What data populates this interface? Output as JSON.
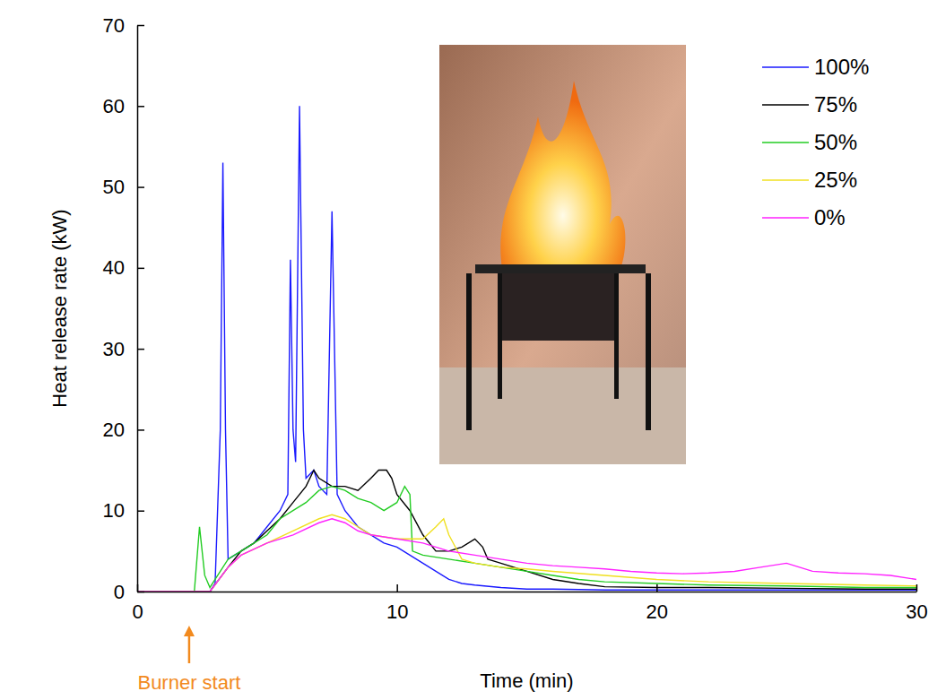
{
  "chart_data": {
    "type": "line",
    "x_label": "Time (min)",
    "y_label": "Heat release rate (kW)",
    "xlim": [
      0,
      30
    ],
    "ylim": [
      0,
      70
    ],
    "xticks": [
      0,
      10,
      20,
      30
    ],
    "yticks": [
      0,
      10,
      20,
      30,
      40,
      50,
      60,
      70
    ],
    "legend": "upper right",
    "annotations": [
      {
        "text": "Burner start",
        "x": 2,
        "color": "#f28a1e"
      }
    ],
    "series": [
      {
        "name": "100%",
        "color": "#1a1aff",
        "x": [
          0,
          2.8,
          3.0,
          3.2,
          3.3,
          3.4,
          3.5,
          4,
          4.5,
          5,
          5.5,
          5.8,
          5.9,
          6.0,
          6.1,
          6.25,
          6.4,
          6.5,
          6.8,
          7.0,
          7.3,
          7.5,
          7.7,
          8,
          8.5,
          9,
          9.5,
          10,
          10.5,
          11,
          11.5,
          12,
          12.5,
          13,
          14,
          15,
          16,
          18,
          20,
          25,
          30
        ],
        "values": [
          0,
          0,
          1,
          20,
          53,
          20,
          4,
          5,
          6,
          8,
          10,
          12,
          41,
          20,
          16,
          60,
          20,
          14,
          15,
          13,
          12,
          47,
          12,
          10,
          8,
          7,
          6,
          5.5,
          4.5,
          3.5,
          2.5,
          1.5,
          1,
          0.8,
          0.5,
          0.3,
          0.3,
          0.2,
          0.2,
          0.2,
          0.2
        ]
      },
      {
        "name": "75%",
        "color": "#000000",
        "x": [
          0,
          2.8,
          3.5,
          4,
          4.5,
          5,
          5.5,
          6,
          6.5,
          6.8,
          7,
          7.5,
          8,
          8.5,
          9,
          9.3,
          9.6,
          9.8,
          10,
          10.5,
          11,
          11.5,
          12,
          12.5,
          13,
          13.3,
          13.5,
          14,
          15,
          16,
          17,
          18,
          20,
          22,
          25,
          28,
          30
        ],
        "values": [
          0,
          0,
          3,
          5,
          6,
          7.5,
          9,
          11,
          13,
          15,
          14,
          13,
          13,
          12.5,
          14,
          15,
          15,
          14,
          12,
          10,
          7,
          5,
          5,
          5.5,
          6.5,
          5.5,
          4,
          3.5,
          2.5,
          1.5,
          1,
          0.6,
          0.5,
          0.5,
          0.4,
          0.3,
          0.3
        ]
      },
      {
        "name": "50%",
        "color": "#22cc22",
        "x": [
          0,
          2.2,
          2.4,
          2.6,
          2.8,
          3.0,
          3.5,
          4,
          5,
          5.5,
          6,
          6.5,
          7,
          7.5,
          8,
          8.5,
          9,
          9.5,
          10,
          10.3,
          10.5,
          10.6,
          11,
          12,
          13,
          14,
          15,
          16,
          17,
          18,
          20,
          22,
          25,
          28,
          30
        ],
        "values": [
          0,
          0,
          8,
          2,
          0.5,
          1.5,
          4,
          5,
          7,
          9,
          10,
          11,
          12.5,
          13,
          12.5,
          11.5,
          11,
          10,
          11,
          13,
          12,
          5,
          4.5,
          4,
          3.5,
          3,
          2.5,
          2,
          1.5,
          1.2,
          1,
          0.8,
          0.7,
          0.5,
          0.5
        ]
      },
      {
        "name": "25%",
        "color": "#f0e020",
        "x": [
          0,
          2.8,
          3.5,
          4,
          5,
          6,
          7,
          7.5,
          8,
          8.5,
          9,
          10,
          11,
          11.5,
          11.8,
          12,
          12.5,
          13,
          14,
          15,
          16,
          18,
          20,
          22,
          25,
          28,
          30
        ],
        "values": [
          0,
          0,
          3,
          4.5,
          6,
          7.5,
          9,
          9.5,
          9,
          8,
          7,
          6.5,
          6.5,
          8,
          9,
          7,
          4,
          3.5,
          3,
          2.8,
          2.5,
          2,
          1.5,
          1.2,
          1,
          0.8,
          0.7
        ]
      },
      {
        "name": "0%",
        "color": "#ff22ff",
        "x": [
          0,
          2.8,
          3.5,
          4,
          5,
          6,
          7,
          7.5,
          8,
          8.5,
          9,
          10,
          11,
          12,
          13,
          14,
          15,
          16,
          17,
          18,
          19,
          20,
          21,
          22,
          23,
          24,
          25,
          25.5,
          26,
          27,
          28,
          29,
          30
        ],
        "values": [
          0,
          0,
          3,
          4.5,
          6,
          7,
          8.5,
          9,
          8.5,
          7.5,
          7,
          6.5,
          6,
          5,
          4.5,
          4,
          3.5,
          3.2,
          3,
          2.8,
          2.5,
          2.3,
          2.2,
          2.3,
          2.5,
          3,
          3.5,
          3,
          2.5,
          2.3,
          2.2,
          2,
          1.5
        ]
      }
    ]
  }
}
